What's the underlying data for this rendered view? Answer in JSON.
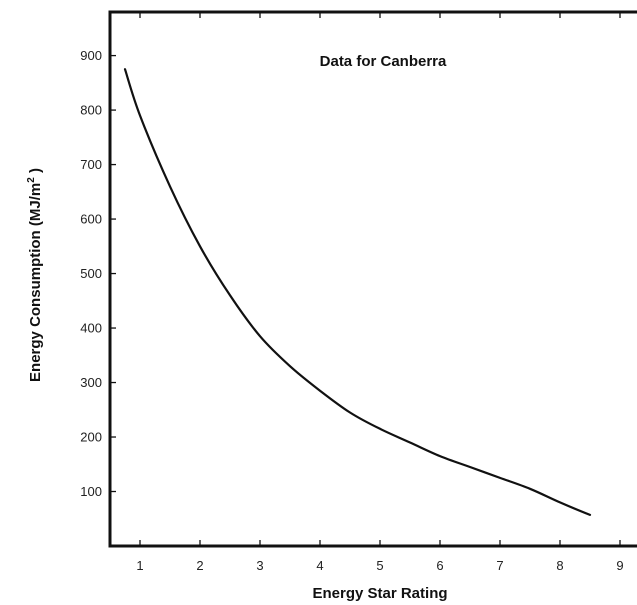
{
  "chart_data": {
    "type": "line",
    "title": "",
    "annotation": "Data for Canberra",
    "xlabel": "Energy Star Rating",
    "ylabel_main": "Energy Consumption (MJ/m",
    "ylabel_sup": "2",
    "ylabel_end": " )",
    "xlim": [
      0.5,
      9.5
    ],
    "ylim": [
      0,
      980
    ],
    "xticks": [
      1,
      2,
      3,
      4,
      5,
      6,
      7,
      8,
      9
    ],
    "yticks": [
      100,
      200,
      300,
      400,
      500,
      600,
      700,
      800,
      900
    ],
    "grid": false,
    "legend": "none",
    "line_color": "#111111",
    "series": [
      {
        "x": [
          0.75,
          1.0,
          1.5,
          2.0,
          2.5,
          3.0,
          3.5,
          4.0,
          4.5,
          5.0,
          5.5,
          6.0,
          6.5,
          7.0,
          7.5,
          8.0,
          8.5
        ],
        "values": [
          875,
          790,
          660,
          550,
          460,
          385,
          330,
          285,
          245,
          215,
          190,
          165,
          145,
          125,
          105,
          80,
          57
        ]
      }
    ]
  }
}
